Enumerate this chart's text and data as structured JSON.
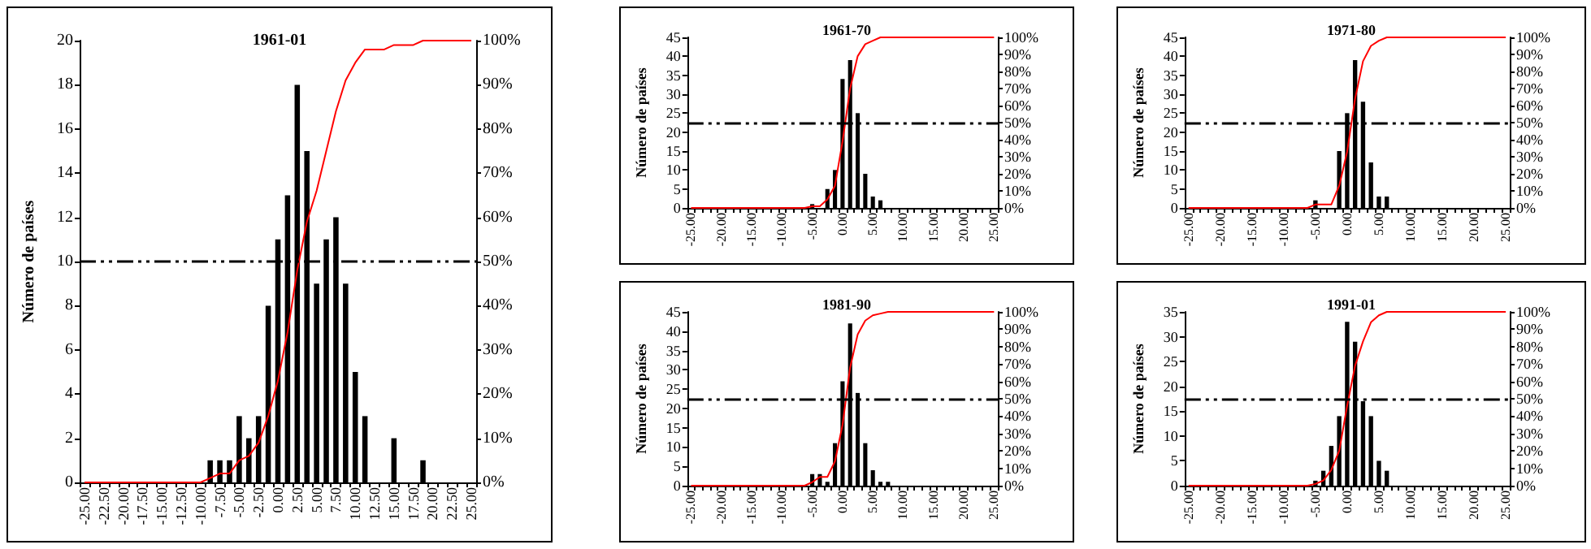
{
  "chart_data": [
    {
      "type": "bar",
      "title": "1961-01",
      "ylabel": "Número de países",
      "marker": "none",
      "categories": [
        "-25.00",
        null,
        "-22.50",
        null,
        "-20.00",
        null,
        "-17.50",
        null,
        "-15.00",
        null,
        "-12.50",
        null,
        "-10.00",
        null,
        "-7.50",
        null,
        "-5.00",
        null,
        "-2.50",
        null,
        "0.00",
        null,
        "2.50",
        null,
        "5.00",
        null,
        "7.50",
        null,
        "10.00",
        null,
        "12.50",
        null,
        "15.00",
        null,
        "17.50",
        null,
        "20.00",
        null,
        "22.50",
        null,
        "25.00"
      ],
      "ylim": [
        0,
        20
      ],
      "yticks": [
        0,
        2,
        4,
        6,
        8,
        10,
        12,
        14,
        16,
        18,
        20
      ],
      "y2lim": [
        0,
        100
      ],
      "y2ticks": [
        {
          "value": 0,
          "label": "0%"
        },
        {
          "value": 10,
          "label": "10%"
        },
        {
          "value": 20,
          "label": "20%"
        },
        {
          "value": 30,
          "label": "30%"
        },
        {
          "value": 40,
          "label": "40%"
        },
        {
          "value": 50,
          "label": "50%"
        },
        {
          "value": 60,
          "label": "60%"
        },
        {
          "value": 70,
          "label": "70%"
        },
        {
          "value": 80,
          "label": "80%"
        },
        {
          "value": 90,
          "label": "90%"
        },
        {
          "value": 100,
          "label": "100%"
        }
      ],
      "ref_lines": [
        {
          "axis": "y2",
          "value": 50,
          "color": "#000000",
          "line_style": "dashed"
        }
      ],
      "series": [
        {
          "color": "#000000",
          "values": [
            0,
            0,
            0,
            0,
            0,
            0,
            0,
            0,
            0,
            0,
            0,
            0,
            0,
            1,
            1,
            1,
            3,
            2,
            3,
            8,
            11,
            13,
            18,
            15,
            9,
            11,
            12,
            9,
            5,
            3,
            0,
            0,
            2,
            0,
            0,
            1,
            0,
            0,
            0,
            0,
            0
          ]
        },
        {
          "type": "line",
          "axis": "y2",
          "color": "#ff0000",
          "values": [
            0,
            0,
            0,
            0,
            0,
            0,
            0,
            0,
            0,
            0,
            0,
            0,
            0,
            1,
            2,
            2,
            5,
            6,
            9,
            15,
            23,
            34,
            48,
            59,
            66,
            75,
            84,
            91,
            95,
            98,
            98,
            98,
            99,
            99,
            99,
            100,
            100,
            100,
            100,
            100,
            100
          ]
        }
      ]
    },
    {
      "type": "bar",
      "title": "1961-70",
      "ylabel": "Número de países",
      "marker": "none",
      "categories": [
        "-25.00",
        null,
        null,
        null,
        "-20.00",
        null,
        null,
        null,
        "-15.00",
        null,
        null,
        null,
        "-10.00",
        null,
        null,
        null,
        "-5.00",
        null,
        null,
        null,
        "0.00",
        null,
        null,
        null,
        "5.00",
        null,
        null,
        null,
        "10.00",
        null,
        null,
        null,
        "15.00",
        null,
        null,
        null,
        "20.00",
        null,
        null,
        null,
        "25.00"
      ],
      "ylim": [
        0,
        45
      ],
      "yticks": [
        0,
        5,
        10,
        15,
        20,
        25,
        30,
        35,
        40,
        45
      ],
      "y2lim": [
        0,
        100
      ],
      "y2ticks": [
        {
          "value": 0,
          "label": "0%"
        },
        {
          "value": 10,
          "label": "10%"
        },
        {
          "value": 20,
          "label": "20%"
        },
        {
          "value": 30,
          "label": "30%"
        },
        {
          "value": 40,
          "label": "40%"
        },
        {
          "value": 50,
          "label": "50%"
        },
        {
          "value": 60,
          "label": "60%"
        },
        {
          "value": 70,
          "label": "70%"
        },
        {
          "value": 80,
          "label": "80%"
        },
        {
          "value": 90,
          "label": "90%"
        },
        {
          "value": 100,
          "label": "100%"
        }
      ],
      "ref_lines": [
        {
          "axis": "y2",
          "value": 50,
          "color": "#000000",
          "line_style": "dashed"
        }
      ],
      "series": [
        {
          "color": "#000000",
          "values": [
            0,
            0,
            0,
            0,
            0,
            0,
            0,
            0,
            0,
            0,
            0,
            0,
            0,
            0,
            0,
            0,
            1,
            0,
            5,
            10,
            34,
            39,
            25,
            9,
            3,
            2,
            0,
            0,
            0,
            0,
            0,
            0,
            0,
            0,
            0,
            0,
            0,
            0,
            0,
            0,
            0
          ]
        },
        {
          "type": "line",
          "axis": "y2",
          "color": "#ff0000",
          "values": [
            0,
            0,
            0,
            0,
            0,
            0,
            0,
            0,
            0,
            0,
            0,
            0,
            0,
            0,
            0,
            0,
            1,
            1,
            5,
            13,
            39,
            70,
            89,
            96,
            98,
            100,
            100,
            100,
            100,
            100,
            100,
            100,
            100,
            100,
            100,
            100,
            100,
            100,
            100,
            100,
            100
          ]
        }
      ]
    },
    {
      "type": "bar",
      "title": "1971-80",
      "ylabel": "Número de países",
      "marker": "none",
      "categories": [
        "-25.00",
        null,
        null,
        null,
        "-20.00",
        null,
        null,
        null,
        "-15.00",
        null,
        null,
        null,
        "-10.00",
        null,
        null,
        null,
        "-5.00",
        null,
        null,
        null,
        "0.00",
        null,
        null,
        null,
        "5.00",
        null,
        null,
        null,
        "10.00",
        null,
        null,
        null,
        "15.00",
        null,
        null,
        null,
        "20.00",
        null,
        null,
        null,
        "25.00"
      ],
      "ylim": [
        0,
        45
      ],
      "yticks": [
        0,
        5,
        10,
        15,
        20,
        25,
        30,
        35,
        40,
        45
      ],
      "y2lim": [
        0,
        100
      ],
      "y2ticks": [
        {
          "value": 0,
          "label": "0%"
        },
        {
          "value": 10,
          "label": "10%"
        },
        {
          "value": 20,
          "label": "20%"
        },
        {
          "value": 30,
          "label": "30%"
        },
        {
          "value": 40,
          "label": "40%"
        },
        {
          "value": 50,
          "label": "50%"
        },
        {
          "value": 60,
          "label": "60%"
        },
        {
          "value": 70,
          "label": "70%"
        },
        {
          "value": 80,
          "label": "80%"
        },
        {
          "value": 90,
          "label": "90%"
        },
        {
          "value": 100,
          "label": "100%"
        }
      ],
      "ref_lines": [
        {
          "axis": "y2",
          "value": 50,
          "color": "#000000",
          "line_style": "dashed"
        }
      ],
      "series": [
        {
          "color": "#000000",
          "values": [
            0,
            0,
            0,
            0,
            0,
            0,
            0,
            0,
            0,
            0,
            0,
            0,
            0,
            0,
            0,
            0,
            2,
            0,
            0,
            15,
            25,
            39,
            28,
            12,
            3,
            3,
            0,
            0,
            0,
            0,
            0,
            0,
            0,
            0,
            0,
            0,
            0,
            0,
            0,
            0,
            0
          ]
        },
        {
          "type": "line",
          "axis": "y2",
          "color": "#ff0000",
          "values": [
            0,
            0,
            0,
            0,
            0,
            0,
            0,
            0,
            0,
            0,
            0,
            0,
            0,
            0,
            0,
            0,
            2,
            2,
            2,
            13,
            33,
            64,
            86,
            95,
            98,
            100,
            100,
            100,
            100,
            100,
            100,
            100,
            100,
            100,
            100,
            100,
            100,
            100,
            100,
            100,
            100
          ]
        }
      ]
    },
    {
      "type": "bar",
      "title": "1981-90",
      "ylabel": "Número de países",
      "marker": "none",
      "categories": [
        "-25.00",
        null,
        null,
        null,
        "-20.00",
        null,
        null,
        null,
        "-15.00",
        null,
        null,
        null,
        "-10.00",
        null,
        null,
        null,
        "-5.00",
        null,
        null,
        null,
        "0.00",
        null,
        null,
        null,
        "5.00",
        null,
        null,
        null,
        "10.00",
        null,
        null,
        null,
        "15.00",
        null,
        null,
        null,
        "20.00",
        null,
        null,
        null,
        "25.00"
      ],
      "ylim": [
        0,
        45
      ],
      "yticks": [
        0,
        5,
        10,
        15,
        20,
        25,
        30,
        35,
        40,
        45
      ],
      "y2lim": [
        0,
        100
      ],
      "y2ticks": [
        {
          "value": 0,
          "label": "0%"
        },
        {
          "value": 10,
          "label": "10%"
        },
        {
          "value": 20,
          "label": "20%"
        },
        {
          "value": 30,
          "label": "30%"
        },
        {
          "value": 40,
          "label": "40%"
        },
        {
          "value": 50,
          "label": "50%"
        },
        {
          "value": 60,
          "label": "60%"
        },
        {
          "value": 70,
          "label": "70%"
        },
        {
          "value": 80,
          "label": "80%"
        },
        {
          "value": 90,
          "label": "90%"
        },
        {
          "value": 100,
          "label": "100%"
        }
      ],
      "ref_lines": [
        {
          "axis": "y2",
          "value": 50,
          "color": "#000000",
          "line_style": "dashed"
        }
      ],
      "series": [
        {
          "color": "#000000",
          "values": [
            0,
            0,
            0,
            0,
            0,
            0,
            0,
            0,
            0,
            0,
            0,
            0,
            0,
            0,
            0,
            0,
            3,
            3,
            1,
            11,
            27,
            42,
            24,
            11,
            4,
            1,
            1,
            0,
            0,
            0,
            0,
            0,
            0,
            0,
            0,
            0,
            0,
            0,
            0,
            0,
            0
          ]
        },
        {
          "type": "line",
          "axis": "y2",
          "color": "#ff0000",
          "values": [
            0,
            0,
            0,
            0,
            0,
            0,
            0,
            0,
            0,
            0,
            0,
            0,
            0,
            0,
            0,
            0,
            2,
            5,
            5,
            14,
            35,
            68,
            87,
            95,
            98,
            99,
            100,
            100,
            100,
            100,
            100,
            100,
            100,
            100,
            100,
            100,
            100,
            100,
            100,
            100,
            100
          ]
        }
      ]
    },
    {
      "type": "bar",
      "title": "1991-01",
      "ylabel": "Número de países",
      "marker": "none",
      "categories": [
        "-25.00",
        null,
        null,
        null,
        "-20.00",
        null,
        null,
        null,
        "-15.00",
        null,
        null,
        null,
        "-10.00",
        null,
        null,
        null,
        "-5.00",
        null,
        null,
        null,
        "0.00",
        null,
        null,
        null,
        "5.00",
        null,
        null,
        null,
        "10.00",
        null,
        null,
        null,
        "15.00",
        null,
        null,
        null,
        "20.00",
        null,
        null,
        null,
        "25.00"
      ],
      "ylim": [
        0,
        35
      ],
      "yticks": [
        0,
        5,
        10,
        15,
        20,
        25,
        30,
        35
      ],
      "y2lim": [
        0,
        100
      ],
      "y2ticks": [
        {
          "value": 0,
          "label": "0%"
        },
        {
          "value": 10,
          "label": "10%"
        },
        {
          "value": 20,
          "label": "20%"
        },
        {
          "value": 30,
          "label": "30%"
        },
        {
          "value": 40,
          "label": "40%"
        },
        {
          "value": 50,
          "label": "50%"
        },
        {
          "value": 60,
          "label": "60%"
        },
        {
          "value": 70,
          "label": "70%"
        },
        {
          "value": 80,
          "label": "80%"
        },
        {
          "value": 90,
          "label": "90%"
        },
        {
          "value": 100,
          "label": "100%"
        }
      ],
      "ref_lines": [
        {
          "axis": "y2",
          "value": 50,
          "color": "#000000",
          "line_style": "dashed"
        }
      ],
      "series": [
        {
          "color": "#000000",
          "values": [
            0,
            0,
            0,
            0,
            0,
            0,
            0,
            0,
            0,
            0,
            0,
            0,
            0,
            0,
            0,
            0,
            1,
            3,
            8,
            14,
            33,
            29,
            17,
            14,
            5,
            3,
            0,
            0,
            0,
            0,
            0,
            0,
            0,
            0,
            0,
            0,
            0,
            0,
            0,
            0,
            0
          ]
        },
        {
          "type": "line",
          "axis": "y2",
          "color": "#ff0000",
          "values": [
            0,
            0,
            0,
            0,
            0,
            0,
            0,
            0,
            0,
            0,
            0,
            0,
            0,
            0,
            0,
            0,
            1,
            3,
            9,
            20,
            46,
            69,
            83,
            94,
            98,
            100,
            100,
            100,
            100,
            100,
            100,
            100,
            100,
            100,
            100,
            100,
            100,
            100,
            100,
            100,
            100
          ]
        }
      ]
    }
  ]
}
